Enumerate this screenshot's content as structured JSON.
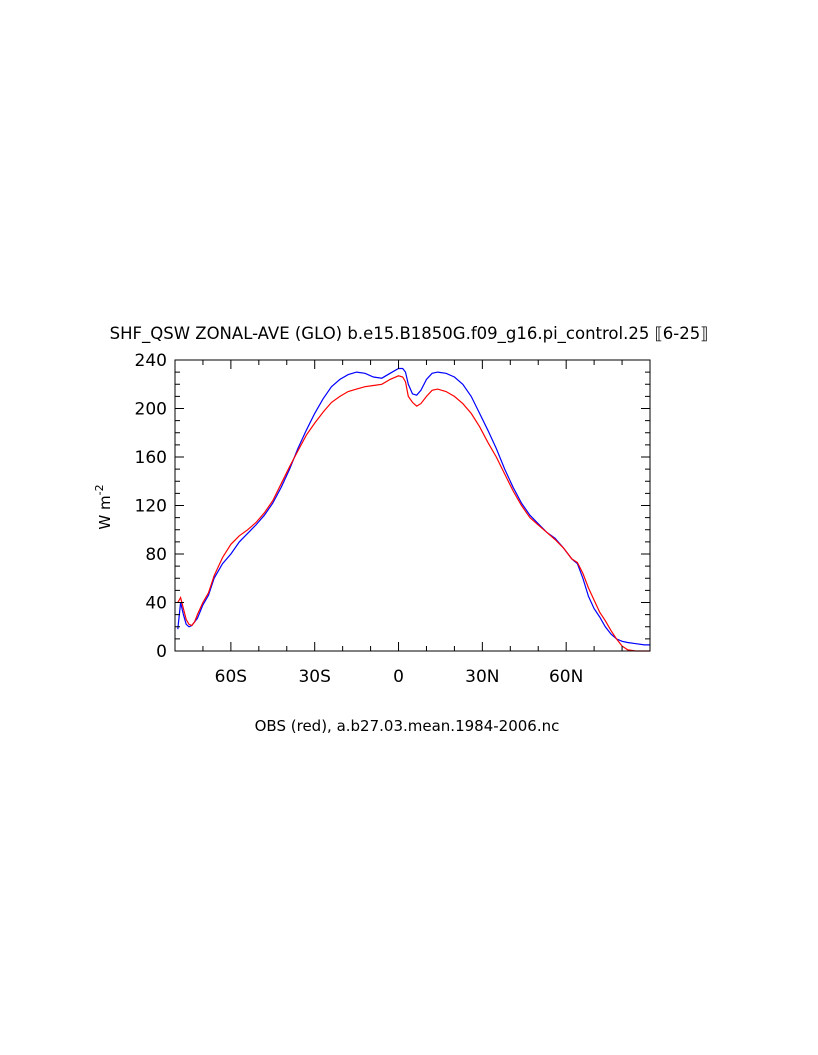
{
  "chart_data": {
    "type": "line",
    "title": "SHF_QSW ZONAL-AVE (GLO) b.e15.B1850G.f09_g16.pi_control.25 ⟦6-25⟧",
    "xlabel": "OBS (red), a.b27.03.mean.1984-2006.nc",
    "ylabel": "W m",
    "ylabel_superscript": "-2",
    "xlim": [
      -80,
      90
    ],
    "ylim": [
      0,
      240
    ],
    "xticks": [
      {
        "value": -60,
        "label": "60S"
      },
      {
        "value": -30,
        "label": "30S"
      },
      {
        "value": 0,
        "label": "0"
      },
      {
        "value": 30,
        "label": "30N"
      },
      {
        "value": 60,
        "label": "60N"
      }
    ],
    "yticks": [
      {
        "value": 0,
        "label": "0"
      },
      {
        "value": 40,
        "label": "40"
      },
      {
        "value": 80,
        "label": "80"
      },
      {
        "value": 120,
        "label": "120"
      },
      {
        "value": 160,
        "label": "160"
      },
      {
        "value": 200,
        "label": "200"
      },
      {
        "value": 240,
        "label": "240"
      }
    ],
    "grid": false,
    "series": [
      {
        "color": "#0000ff",
        "points": [
          [
            -79,
            18
          ],
          [
            -78,
            40
          ],
          [
            -77,
            30
          ],
          [
            -76,
            22
          ],
          [
            -75,
            20
          ],
          [
            -74,
            21
          ],
          [
            -73,
            24
          ],
          [
            -72,
            27
          ],
          [
            -70,
            38
          ],
          [
            -68,
            46
          ],
          [
            -66,
            60
          ],
          [
            -63,
            72
          ],
          [
            -60,
            80
          ],
          [
            -57,
            90
          ],
          [
            -54,
            97
          ],
          [
            -51,
            104
          ],
          [
            -48,
            112
          ],
          [
            -45,
            122
          ],
          [
            -42,
            135
          ],
          [
            -39,
            150
          ],
          [
            -36,
            167
          ],
          [
            -33,
            182
          ],
          [
            -30,
            196
          ],
          [
            -27,
            208
          ],
          [
            -24,
            218
          ],
          [
            -21,
            224
          ],
          [
            -18,
            228
          ],
          [
            -15,
            230
          ],
          [
            -12,
            229
          ],
          [
            -9,
            226
          ],
          [
            -6,
            225
          ],
          [
            -3,
            229
          ],
          [
            0,
            233
          ],
          [
            1.5,
            233
          ],
          [
            2.5,
            230
          ],
          [
            3.5,
            220
          ],
          [
            5,
            212
          ],
          [
            6.5,
            211
          ],
          [
            8,
            215
          ],
          [
            10,
            224
          ],
          [
            12,
            229
          ],
          [
            14,
            230
          ],
          [
            17,
            229
          ],
          [
            20,
            226
          ],
          [
            23,
            220
          ],
          [
            26,
            210
          ],
          [
            29,
            196
          ],
          [
            32,
            182
          ],
          [
            35,
            167
          ],
          [
            38,
            150
          ],
          [
            41,
            135
          ],
          [
            44,
            122
          ],
          [
            47,
            112
          ],
          [
            50,
            105
          ],
          [
            53,
            98
          ],
          [
            56,
            93
          ],
          [
            59,
            85
          ],
          [
            62,
            76
          ],
          [
            64,
            72
          ],
          [
            66,
            60
          ],
          [
            68,
            45
          ],
          [
            70,
            35
          ],
          [
            72,
            28
          ],
          [
            74,
            20
          ],
          [
            76,
            14
          ],
          [
            78,
            10
          ],
          [
            80,
            8
          ],
          [
            82,
            7
          ],
          [
            85,
            6
          ],
          [
            88,
            5
          ],
          [
            90,
            5
          ]
        ]
      },
      {
        "color": "#ff0000",
        "points": [
          [
            -79,
            40
          ],
          [
            -78,
            44
          ],
          [
            -77,
            35
          ],
          [
            -76,
            26
          ],
          [
            -75,
            22
          ],
          [
            -74,
            21
          ],
          [
            -73,
            24
          ],
          [
            -72,
            30
          ],
          [
            -70,
            40
          ],
          [
            -68,
            48
          ],
          [
            -66,
            62
          ],
          [
            -63,
            77
          ],
          [
            -60,
            88
          ],
          [
            -57,
            95
          ],
          [
            -54,
            100
          ],
          [
            -51,
            106
          ],
          [
            -48,
            114
          ],
          [
            -45,
            124
          ],
          [
            -42,
            138
          ],
          [
            -39,
            152
          ],
          [
            -36,
            165
          ],
          [
            -33,
            178
          ],
          [
            -30,
            188
          ],
          [
            -27,
            197
          ],
          [
            -24,
            205
          ],
          [
            -21,
            210
          ],
          [
            -18,
            214
          ],
          [
            -15,
            216
          ],
          [
            -12,
            218
          ],
          [
            -9,
            219
          ],
          [
            -6,
            220
          ],
          [
            -3,
            224
          ],
          [
            0,
            227
          ],
          [
            1.5,
            226
          ],
          [
            2.5,
            222
          ],
          [
            3.5,
            210
          ],
          [
            5,
            205
          ],
          [
            6.5,
            202
          ],
          [
            8,
            204
          ],
          [
            10,
            210
          ],
          [
            12,
            215
          ],
          [
            14,
            216
          ],
          [
            17,
            214
          ],
          [
            20,
            210
          ],
          [
            23,
            204
          ],
          [
            26,
            196
          ],
          [
            29,
            185
          ],
          [
            32,
            172
          ],
          [
            35,
            160
          ],
          [
            38,
            146
          ],
          [
            41,
            132
          ],
          [
            44,
            120
          ],
          [
            47,
            110
          ],
          [
            50,
            104
          ],
          [
            53,
            98
          ],
          [
            56,
            92
          ],
          [
            59,
            85
          ],
          [
            62,
            76
          ],
          [
            64,
            73
          ],
          [
            66,
            64
          ],
          [
            68,
            52
          ],
          [
            70,
            42
          ],
          [
            72,
            32
          ],
          [
            74,
            25
          ],
          [
            76,
            17
          ],
          [
            78,
            10
          ],
          [
            80,
            4
          ],
          [
            82,
            1
          ],
          [
            85,
            0
          ],
          [
            88,
            0
          ],
          [
            90,
            0
          ]
        ]
      }
    ]
  }
}
